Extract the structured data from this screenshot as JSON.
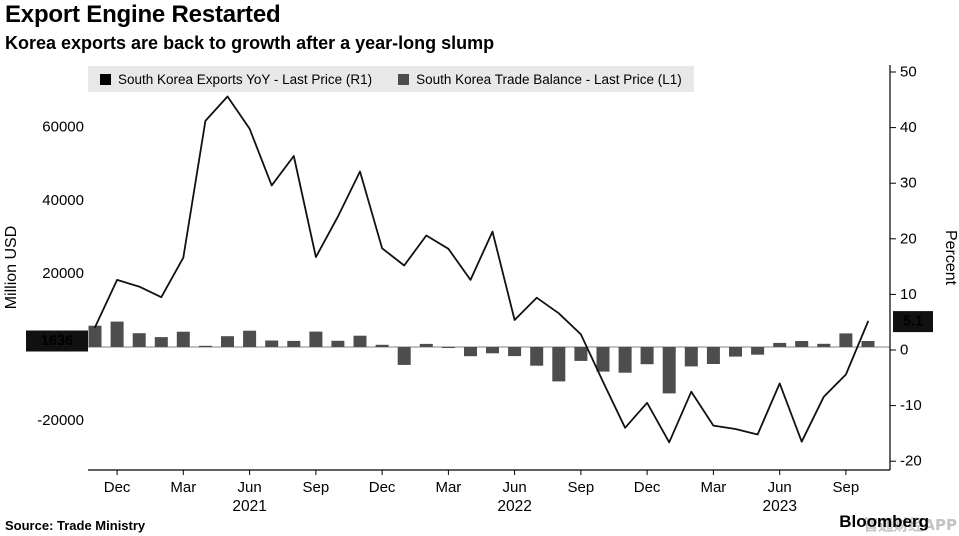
{
  "footer": {
    "source": "Source: Trade Ministry",
    "brand": "Bloomberg",
    "watermark": "智通财经APP"
  },
  "chart_data": {
    "type": "combo",
    "title": "Export Engine Restarted",
    "subtitle": "Korea exports are back to growth after a year-long slump",
    "x": [
      "Nov 2020",
      "Dec 2020",
      "Jan 2021",
      "Feb 2021",
      "Mar 2021",
      "Apr 2021",
      "May 2021",
      "Jun 2021",
      "Jul 2021",
      "Aug 2021",
      "Sep 2021",
      "Oct 2021",
      "Nov 2021",
      "Dec 2021",
      "Jan 2022",
      "Feb 2022",
      "Mar 2022",
      "Apr 2022",
      "May 2022",
      "Jun 2022",
      "Jul 2022",
      "Aug 2022",
      "Sep 2022",
      "Oct 2022",
      "Nov 2022",
      "Dec 2022",
      "Jan 2023",
      "Feb 2023",
      "Mar 2023",
      "Apr 2023",
      "May 2023",
      "Jun 2023",
      "Jul 2023",
      "Aug 2023",
      "Sep 2023",
      "Oct 2023"
    ],
    "series": [
      {
        "name": "South Korea Exports YoY - Last Price (R1)",
        "type": "line",
        "axis": "right",
        "color": "#111111",
        "values": [
          4.1,
          12.6,
          11.4,
          9.5,
          16.6,
          41.2,
          45.6,
          39.8,
          29.6,
          34.9,
          16.7,
          24.0,
          32.1,
          18.3,
          15.2,
          20.6,
          18.2,
          12.6,
          21.3,
          5.4,
          9.4,
          6.6,
          2.8,
          -5.7,
          -14.0,
          -9.5,
          -16.6,
          -7.5,
          -13.6,
          -14.2,
          -15.2,
          -6.0,
          -16.5,
          -8.4,
          -4.4,
          5.1
        ]
      },
      {
        "name": "South Korea Trade Balance - Last Price (L1)",
        "type": "bar",
        "axis": "left",
        "color": "#4d4d4d",
        "values": [
          5800,
          6940,
          3760,
          2710,
          4170,
          330,
          2940,
          4440,
          1780,
          1660,
          4190,
          1690,
          3090,
          590,
          -4890,
          840,
          -140,
          -2510,
          -1710,
          -2490,
          -5090,
          -9370,
          -3780,
          -6700,
          -7010,
          -4690,
          -12650,
          -5300,
          -4630,
          -2630,
          -2100,
          1130,
          1630,
          870,
          3700,
          1636
        ]
      }
    ],
    "axes": {
      "left": {
        "label": "Million USD",
        "ticks": [
          60000,
          40000,
          20000,
          -20000
        ],
        "range": [
          -33500,
          77000
        ],
        "badge": "1636"
      },
      "right": {
        "label": "Percent",
        "ticks": [
          50,
          40,
          30,
          20,
          10,
          0,
          -10,
          -20
        ],
        "range": [
          -21.6,
          51.3
        ],
        "badge": "5.1"
      }
    },
    "x_tick_months": [
      "Dec",
      "Mar",
      "Jun",
      "Sep"
    ],
    "year_labels": [
      {
        "text": "2021",
        "index": 7
      },
      {
        "text": "2022",
        "index": 19
      },
      {
        "text": "2023",
        "index": 31
      }
    ],
    "grid": false,
    "legend_position": "top"
  }
}
